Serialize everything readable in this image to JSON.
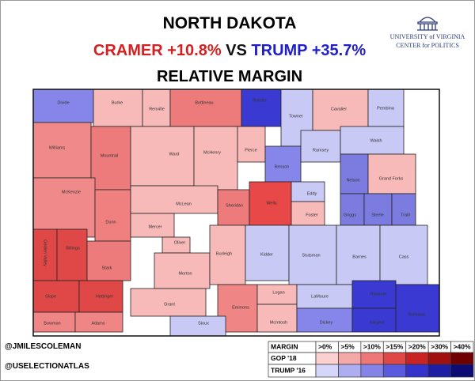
{
  "header": {
    "title": "NORTH DAKOTA",
    "left": "CRAMER +10.8%",
    "middle": "VS",
    "right": "TRUMP +35.7%",
    "subtitle": "RELATIVE MARGIN",
    "left_color": "#d42020",
    "right_color": "#1f1fc8"
  },
  "logo": {
    "line1": "UNIVERSITY of VIRGINIA",
    "line2": "CENTER for POLITICS"
  },
  "credits": [
    "@JMILESCOLEMAN",
    "@USELECTIONATLAS"
  ],
  "legend": {
    "header": [
      "MARGIN",
      ">0%",
      ">5%",
      ">10%",
      ">15%",
      ">20%",
      ">30%",
      ">40%"
    ],
    "rows": [
      {
        "label": "GOP '18",
        "colors": [
          "#fbd0d0",
          "#f5a8a8",
          "#ee7878",
          "#e04848",
          "#c82424",
          "#a01010",
          "#700000"
        ]
      },
      {
        "label": "TRUMP '16",
        "colors": [
          "#d6d6fa",
          "#adadf2",
          "#8484e8",
          "#5a5ade",
          "#3434cc",
          "#1e1ea4",
          "#0c0c74"
        ]
      }
    ]
  },
  "counties": [
    {
      "name": "Divide",
      "color": "#8686ea"
    },
    {
      "name": "Burke",
      "color": "#f8b9b9"
    },
    {
      "name": "Renville",
      "color": "#f8b9b9"
    },
    {
      "name": "Bottineau",
      "color": "#ee7b7b"
    },
    {
      "name": "Rolette",
      "color": "#3a3ad2"
    },
    {
      "name": "Towner",
      "color": "#c9c9f6"
    },
    {
      "name": "Cavalier",
      "color": "#f8b9b9"
    },
    {
      "name": "Pembina",
      "color": "#c9c9f6"
    },
    {
      "name": "Williams",
      "color": "#f08a8a"
    },
    {
      "name": "Mountrail",
      "color": "#ee7b7b"
    },
    {
      "name": "Ward",
      "color": "#f8b9b9"
    },
    {
      "name": "McHenry",
      "color": "#f8b9b9"
    },
    {
      "name": "Pierce",
      "color": "#f8b9b9"
    },
    {
      "name": "Benson",
      "color": "#8686ea"
    },
    {
      "name": "Ramsey",
      "color": "#c9c9f6"
    },
    {
      "name": "Walsh",
      "color": "#c9c9f6"
    },
    {
      "name": "Nelson",
      "color": "#7c7ce0"
    },
    {
      "name": "Grand Forks",
      "color": "#f8b9b9"
    },
    {
      "name": "McKenzie",
      "color": "#f08a8a"
    },
    {
      "name": "Dunn",
      "color": "#f08080"
    },
    {
      "name": "McLean",
      "color": "#f8b9b9"
    },
    {
      "name": "Sheridan",
      "color": "#ee7b7b"
    },
    {
      "name": "Wells",
      "color": "#e84848"
    },
    {
      "name": "Eddy",
      "color": "#c9c9f6"
    },
    {
      "name": "Foster",
      "color": "#f8b9b9"
    },
    {
      "name": "Griggs",
      "color": "#7c7ce0"
    },
    {
      "name": "Steele",
      "color": "#7c7ce0"
    },
    {
      "name": "Traill",
      "color": "#7c7ce0"
    },
    {
      "name": "Golden Valley",
      "color": "#e04848"
    },
    {
      "name": "Billings",
      "color": "#e04848"
    },
    {
      "name": "Stark",
      "color": "#ee7b7b"
    },
    {
      "name": "Mercer",
      "color": "#f8b9b9"
    },
    {
      "name": "Oliver",
      "color": "#f8b9b9"
    },
    {
      "name": "Morton",
      "color": "#f8b9b9"
    },
    {
      "name": "Burleigh",
      "color": "#f8b9b9"
    },
    {
      "name": "Kidder",
      "color": "#c9c9f6"
    },
    {
      "name": "Stutsman",
      "color": "#c9c9f6"
    },
    {
      "name": "Barnes",
      "color": "#c9c9f6"
    },
    {
      "name": "Cass",
      "color": "#c9c9f6"
    },
    {
      "name": "Slope",
      "color": "#e04848"
    },
    {
      "name": "Hettinger",
      "color": "#e04848"
    },
    {
      "name": "Grant",
      "color": "#f8b9b9"
    },
    {
      "name": "Emmons",
      "color": "#f08585"
    },
    {
      "name": "Logan",
      "color": "#f8b9b9"
    },
    {
      "name": "McIntosh",
      "color": "#f8b9b9"
    },
    {
      "name": "LaMoure",
      "color": "#c9c9f6"
    },
    {
      "name": "Dickey",
      "color": "#8686ea"
    },
    {
      "name": "Ransom",
      "color": "#3a3ad2"
    },
    {
      "name": "Sargent",
      "color": "#3a3ad2"
    },
    {
      "name": "Richland",
      "color": "#3a3ad2"
    },
    {
      "name": "Bowman",
      "color": "#f08585"
    },
    {
      "name": "Adams",
      "color": "#f08585"
    },
    {
      "name": "Sioux",
      "color": "#c9c9f6"
    }
  ]
}
